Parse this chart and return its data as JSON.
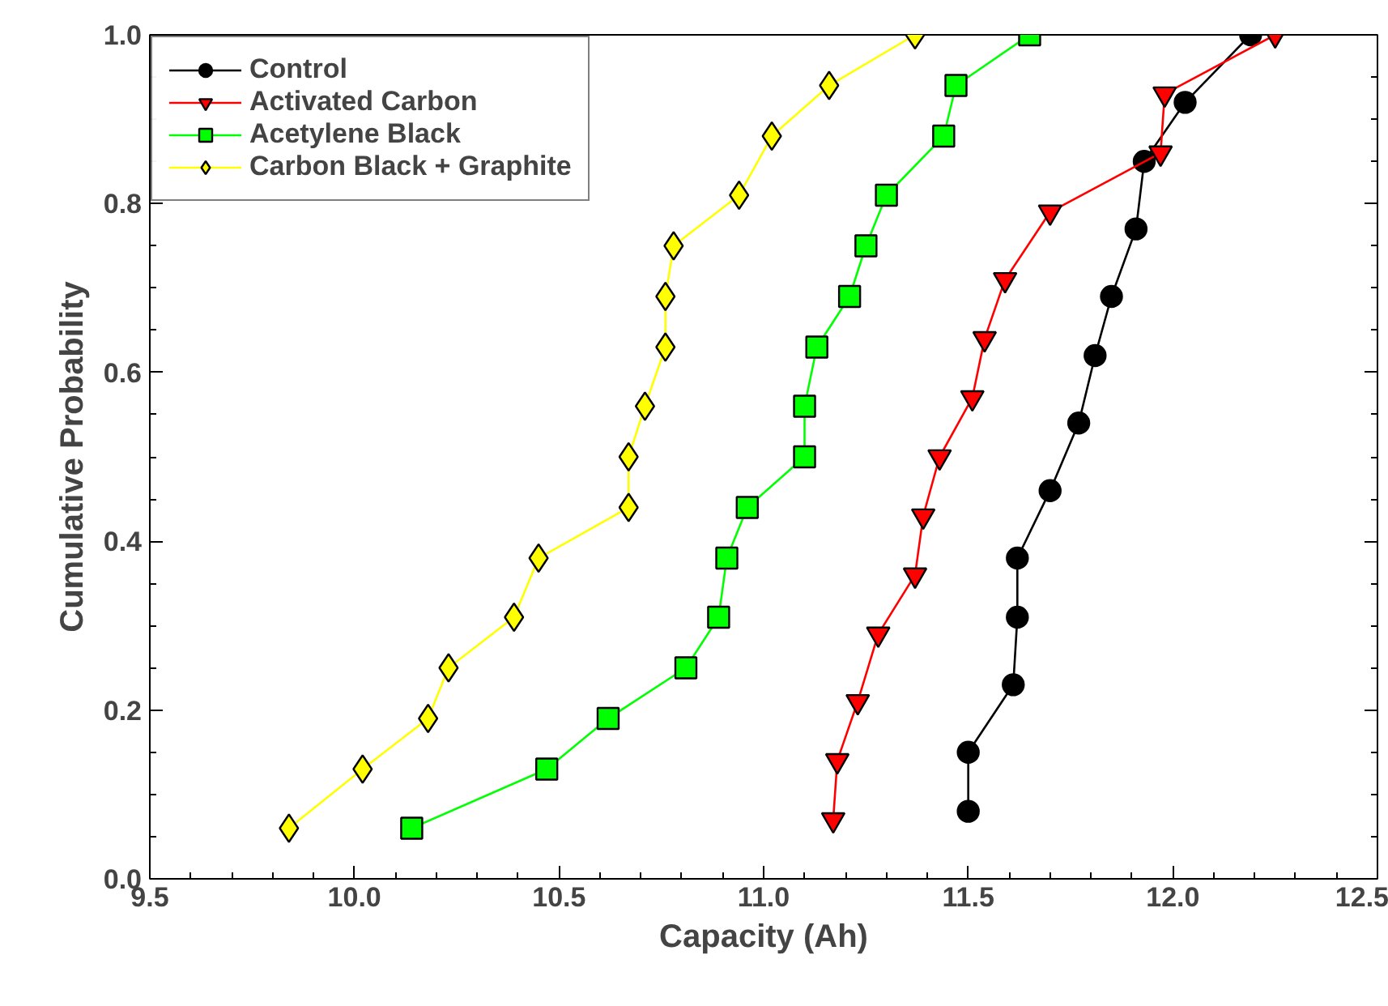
{
  "chart_data": {
    "type": "line",
    "xlabel": "Capacity (Ah)",
    "ylabel": "Cumulative Probability",
    "xlim": [
      9.5,
      12.5
    ],
    "xticks": [
      {
        "value": 9.5,
        "label": "9.5"
      },
      {
        "value": 10,
        "label": "10.0"
      },
      {
        "value": 10.5,
        "label": "10.5"
      },
      {
        "value": 11,
        "label": "11.0"
      },
      {
        "value": 11.5,
        "label": "11.5"
      },
      {
        "value": 12,
        "label": "12.0"
      },
      {
        "value": 12.5,
        "label": "12.5"
      }
    ],
    "ylim": [
      0,
      1
    ],
    "yticks": [
      {
        "value": 0,
        "label": "0.0"
      },
      {
        "value": 0.2,
        "label": "0.2"
      },
      {
        "value": 0.4,
        "label": "0.4"
      },
      {
        "value": 0.6,
        "label": "0.6"
      },
      {
        "value": 0.8,
        "label": "0.8"
      },
      {
        "value": 1,
        "label": "1.0"
      }
    ],
    "grid": false,
    "legend": "top left",
    "line_style": "solid",
    "series": [
      {
        "name": "Control",
        "color": "#000000",
        "marker": "circle",
        "x": [
          11.5,
          11.5,
          11.61,
          11.62,
          11.62,
          11.7,
          11.77,
          11.81,
          11.85,
          11.91,
          11.93,
          12.03,
          12.19
        ],
        "values": [
          0.08,
          0.15,
          0.23,
          0.31,
          0.38,
          0.46,
          0.54,
          0.62,
          0.69,
          0.77,
          0.85,
          0.92,
          1.0
        ]
      },
      {
        "name": "Activated Carbon",
        "color": "#ff0000",
        "marker": "triangle",
        "x": [
          11.17,
          11.18,
          11.23,
          11.28,
          11.37,
          11.39,
          11.43,
          11.51,
          11.54,
          11.59,
          11.7,
          11.97,
          11.98,
          12.25
        ],
        "values": [
          0.07,
          0.14,
          0.21,
          0.29,
          0.36,
          0.43,
          0.5,
          0.57,
          0.64,
          0.71,
          0.79,
          0.86,
          0.93,
          1.0
        ]
      },
      {
        "name": "Acetylene Black",
        "color": "#00ff00",
        "marker": "square",
        "x": [
          10.14,
          10.47,
          10.62,
          10.81,
          10.89,
          10.91,
          10.96,
          11.1,
          11.1,
          11.13,
          11.21,
          11.25,
          11.3,
          11.44,
          11.47,
          11.65
        ],
        "values": [
          0.06,
          0.13,
          0.19,
          0.25,
          0.31,
          0.38,
          0.44,
          0.5,
          0.56,
          0.63,
          0.69,
          0.75,
          0.81,
          0.88,
          0.94,
          1.0
        ]
      },
      {
        "name": "Carbon Black + Graphite",
        "color": "#ffff00",
        "marker": "diamond",
        "x": [
          9.84,
          10.02,
          10.18,
          10.23,
          10.39,
          10.45,
          10.67,
          10.67,
          10.71,
          10.76,
          10.76,
          10.78,
          10.94,
          11.02,
          11.16,
          11.37
        ],
        "values": [
          0.06,
          0.13,
          0.19,
          0.25,
          0.31,
          0.38,
          0.44,
          0.5,
          0.56,
          0.63,
          0.69,
          0.75,
          0.81,
          0.88,
          0.94,
          1.0
        ]
      }
    ]
  }
}
